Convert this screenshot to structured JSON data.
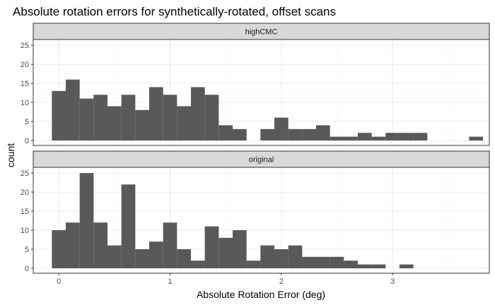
{
  "chart_data": {
    "type": "bar",
    "title": "Absolute rotation errors for synthetically-rotated, offset scans",
    "xlabel": "Absolute Rotation Error (deg)",
    "ylabel": "count",
    "x_ticks": [
      0,
      1,
      2,
      3
    ],
    "y_ticks": [
      0,
      5,
      10,
      15,
      20,
      25
    ],
    "xlim": [
      -0.23,
      3.87
    ],
    "ylim": [
      -1.3,
      26.5
    ],
    "grid": true,
    "bar_color": "#595959",
    "bin_width": 0.125,
    "bin_starts": [
      -0.0625,
      0.0625,
      0.1875,
      0.3125,
      0.4375,
      0.5625,
      0.6875,
      0.8125,
      0.9375,
      1.0625,
      1.1875,
      1.3125,
      1.4375,
      1.5625,
      1.6875,
      1.8125,
      1.9375,
      2.0625,
      2.1875,
      2.3125,
      2.4375,
      2.5625,
      2.6875,
      2.8125,
      2.9375,
      3.0625,
      3.1875,
      3.3125,
      3.4375,
      3.5625,
      3.6875
    ],
    "panels": [
      {
        "strip": "highCMC",
        "counts": [
          13,
          16,
          11,
          12,
          9,
          12,
          8,
          14,
          12,
          9,
          14,
          12,
          4,
          3,
          0,
          3,
          6,
          3,
          3,
          4,
          1,
          1,
          2,
          1,
          2,
          2,
          2,
          0,
          0,
          0,
          1
        ]
      },
      {
        "strip": "original",
        "counts": [
          10,
          12,
          25,
          12,
          6,
          22,
          5,
          7,
          12,
          5,
          2,
          11,
          8,
          10,
          2,
          6,
          5,
          6,
          3,
          3,
          3,
          2,
          1,
          1,
          0,
          1,
          0,
          0,
          0,
          0,
          0
        ]
      }
    ]
  }
}
